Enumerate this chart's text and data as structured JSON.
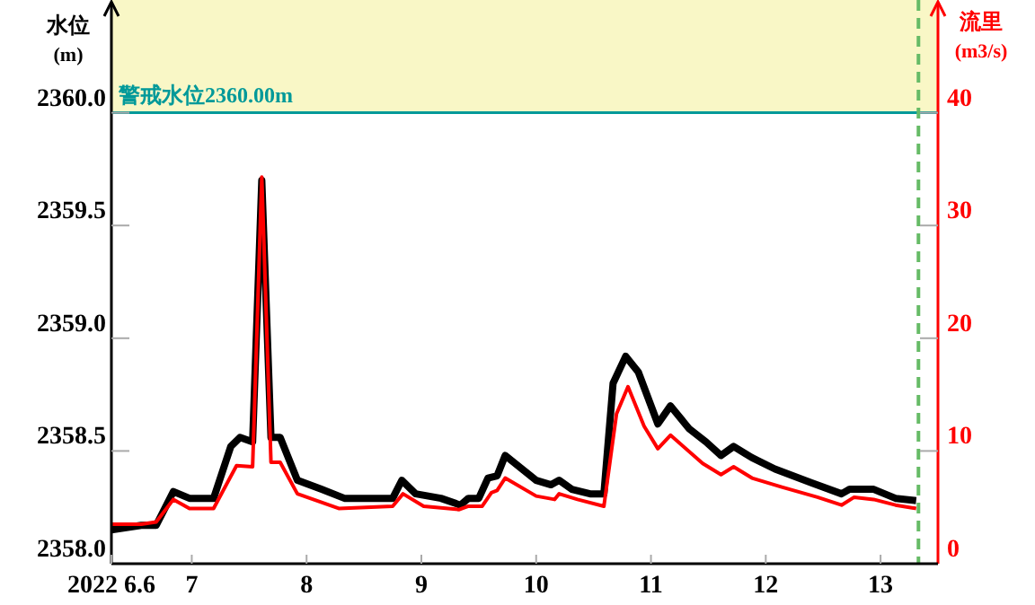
{
  "chart_data": {
    "type": "line",
    "ylabel": "水位\n(m)",
    "y2label": "流里\n(m3/s)",
    "xlim": [
      6.3,
      13.5
    ],
    "xticks": [
      {
        "value": 6.3,
        "label": "2022 6.6"
      },
      7,
      8,
      9,
      10,
      11,
      12,
      13
    ],
    "ylim": [
      2358,
      2360.5
    ],
    "yticks": [
      {
        "value": 2358,
        "label": "2358.0"
      },
      2358.5,
      {
        "value": 2359,
        "label": "2359.0"
      },
      2359.5,
      {
        "value": 2360,
        "label": "2360.0"
      }
    ],
    "y2lim": [
      0,
      50
    ],
    "y2ticks": [
      0,
      10,
      20,
      30,
      40
    ],
    "grid": false,
    "bands": [
      {
        "axis": "y",
        "from": 2360,
        "to": 2360.5,
        "color": "#f9f7c6"
      }
    ],
    "ref_lines": [
      {
        "axis": "y",
        "value": 2360,
        "label": "警戒水位2360.00m",
        "color": "#009999",
        "line_style": "solid"
      },
      {
        "axis": "x",
        "value": 13.33,
        "color": "#66bb66",
        "line_style": "dashed"
      }
    ],
    "series": [
      {
        "color": "#000000",
        "x": [
          6.3,
          6.56,
          6.69,
          6.84,
          6.98,
          7.11,
          7.19,
          7.34,
          7.42,
          7.53,
          7.61,
          7.69,
          7.77,
          7.92,
          8.13,
          8.33,
          8.75,
          8.83,
          8.95,
          9.17,
          9.34,
          9.41,
          9.5,
          9.58,
          9.66,
          9.73,
          10.0,
          10.13,
          10.2,
          10.31,
          10.47,
          10.59,
          10.67,
          10.78,
          10.89,
          11.06,
          11.17,
          11.33,
          11.48,
          11.61,
          11.72,
          11.88,
          12.08,
          12.39,
          12.66,
          12.73,
          12.94,
          13.13,
          13.31
        ],
        "values": [
          2358.15,
          2358.17,
          2358.17,
          2358.32,
          2358.29,
          2358.29,
          2358.29,
          2358.52,
          2358.56,
          2358.54,
          2359.7,
          2358.56,
          2358.56,
          2358.37,
          2358.33,
          2358.29,
          2358.29,
          2358.37,
          2358.31,
          2358.29,
          2358.26,
          2358.29,
          2358.29,
          2358.38,
          2358.39,
          2358.48,
          2358.37,
          2358.35,
          2358.37,
          2358.33,
          2358.31,
          2358.31,
          2358.8,
          2358.92,
          2358.85,
          2358.62,
          2358.7,
          2358.6,
          2358.54,
          2358.48,
          2358.52,
          2358.47,
          2358.42,
          2358.36,
          2358.31,
          2358.33,
          2358.33,
          2358.29,
          2358.28
        ]
      },
      {
        "color": "#ff0000",
        "axis": "y2",
        "x": [
          6.3,
          6.56,
          6.69,
          6.84,
          6.98,
          7.19,
          7.39,
          7.53,
          7.61,
          7.69,
          7.77,
          7.92,
          8.28,
          8.75,
          8.84,
          9.02,
          9.33,
          9.41,
          9.53,
          9.61,
          9.66,
          9.73,
          10.0,
          10.16,
          10.2,
          10.36,
          10.59,
          10.7,
          10.8,
          10.94,
          11.06,
          11.17,
          11.45,
          11.61,
          11.72,
          11.88,
          12.14,
          12.45,
          12.66,
          12.77,
          12.94,
          13.13,
          13.31
        ],
        "values": [
          3.5,
          3.5,
          3.7,
          5.7,
          4.9,
          4.9,
          8.7,
          8.6,
          34.3,
          9.0,
          9.0,
          6.2,
          4.9,
          5.1,
          6.2,
          5.1,
          4.8,
          5.1,
          5.1,
          6.3,
          6.5,
          7.6,
          6.0,
          5.7,
          6.2,
          5.7,
          5.1,
          13.3,
          15.7,
          12.2,
          10.2,
          11.4,
          8.9,
          7.9,
          8.6,
          7.6,
          6.8,
          5.9,
          5.2,
          5.9,
          5.7,
          5.2,
          4.9
        ]
      }
    ]
  }
}
